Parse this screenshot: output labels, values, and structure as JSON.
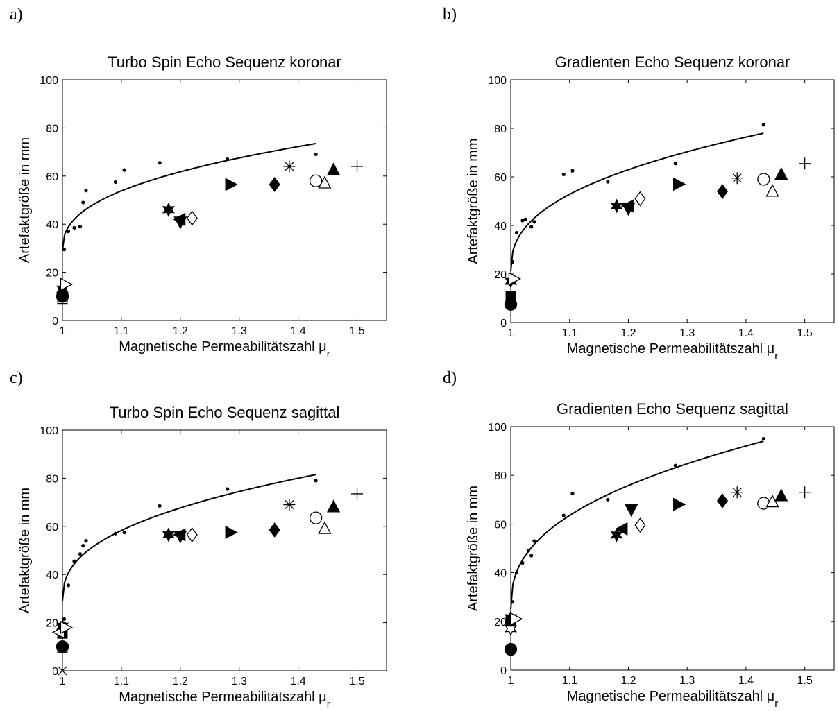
{
  "figure": {
    "panel_labels": [
      "a)",
      "b)",
      "c)",
      "d)"
    ]
  },
  "chart_data": [
    {
      "type": "scatter",
      "title": "Turbo Spin Echo Sequenz koronar",
      "xlabel": "Magnetische Permeabilitätszahl μ",
      "xlabel_sub": "r",
      "ylabel": "Artefaktgröße in mm",
      "xlim": [
        1,
        1.55
      ],
      "ylim": [
        0,
        100
      ],
      "xticks": [
        "1",
        "1.1",
        "1.2",
        "1.3",
        "1.4",
        "1.5"
      ],
      "yticks": [
        "0",
        "20",
        "40",
        "60",
        "80",
        "100"
      ],
      "grid": false,
      "fit_curve": {
        "x_min": 1.0,
        "x_max": 1.43,
        "y_start": 29,
        "y_end": 73.5,
        "exponent": 0.4
      },
      "dots": [
        [
          1.003,
          29.5
        ],
        [
          1.01,
          37
        ],
        [
          1.02,
          38.5
        ],
        [
          1.03,
          39
        ],
        [
          1.035,
          49
        ],
        [
          1.04,
          54
        ],
        [
          1.09,
          57.5
        ],
        [
          1.105,
          62.5
        ],
        [
          1.165,
          65.5
        ],
        [
          1.28,
          67
        ],
        [
          1.43,
          69
        ]
      ],
      "markers": [
        {
          "shape": "square-open",
          "x": 1.0,
          "y": 9
        },
        {
          "shape": "circle-filled",
          "x": 1.0,
          "y": 10
        },
        {
          "shape": "hexagram-filled",
          "x": 1.0,
          "y": 13
        },
        {
          "shape": "triangle-right-open",
          "x": 1.005,
          "y": 15
        },
        {
          "shape": "hexagram-filled",
          "x": 1.18,
          "y": 46
        },
        {
          "shape": "triangle-down-filled",
          "x": 1.2,
          "y": 41
        },
        {
          "shape": "triangle-left-filled",
          "x": 1.2,
          "y": 42
        },
        {
          "shape": "diamond-open",
          "x": 1.22,
          "y": 42.5
        },
        {
          "shape": "triangle-right-filled",
          "x": 1.285,
          "y": 56.5
        },
        {
          "shape": "diamond-filled",
          "x": 1.36,
          "y": 56.5
        },
        {
          "shape": "asterisk",
          "x": 1.385,
          "y": 64
        },
        {
          "shape": "circle-open",
          "x": 1.43,
          "y": 58
        },
        {
          "shape": "triangle-up-open",
          "x": 1.445,
          "y": 57
        },
        {
          "shape": "triangle-up-filled",
          "x": 1.46,
          "y": 62.5
        },
        {
          "shape": "plus",
          "x": 1.5,
          "y": 64
        }
      ]
    },
    {
      "type": "scatter",
      "title": "Gradienten Echo Sequenz koronar",
      "xlabel": "Magnetische Permeabilitätszahl μ",
      "xlabel_sub": "r",
      "ylabel": "Artefaktgröße in mm",
      "xlim": [
        1,
        1.55
      ],
      "ylim": [
        0,
        100
      ],
      "xticks": [
        "1",
        "1.1",
        "1.2",
        "1.3",
        "1.4",
        "1.5"
      ],
      "yticks": [
        "0",
        "20",
        "40",
        "60",
        "80",
        "100"
      ],
      "grid": false,
      "fit_curve": {
        "x_min": 1.0,
        "x_max": 1.43,
        "y_start": 21,
        "y_end": 78,
        "exponent": 0.4
      },
      "dots": [
        [
          1.003,
          25
        ],
        [
          1.01,
          37
        ],
        [
          1.02,
          42
        ],
        [
          1.025,
          42.5
        ],
        [
          1.035,
          39.5
        ],
        [
          1.04,
          41.5
        ],
        [
          1.09,
          61
        ],
        [
          1.105,
          62.5
        ],
        [
          1.165,
          58
        ],
        [
          1.28,
          65.5
        ],
        [
          1.43,
          81.5
        ]
      ],
      "markers": [
        {
          "shape": "circle-filled",
          "x": 1.0,
          "y": 7.5
        },
        {
          "shape": "square-filled",
          "x": 1.0,
          "y": 11
        },
        {
          "shape": "hexagram-filled",
          "x": 1.0,
          "y": 17
        },
        {
          "shape": "triangle-right-open",
          "x": 1.005,
          "y": 18
        },
        {
          "shape": "hexagram-filled",
          "x": 1.18,
          "y": 48
        },
        {
          "shape": "triangle-down-filled",
          "x": 1.2,
          "y": 47
        },
        {
          "shape": "triangle-left-filled",
          "x": 1.2,
          "y": 48
        },
        {
          "shape": "diamond-open",
          "x": 1.22,
          "y": 51
        },
        {
          "shape": "triangle-right-filled",
          "x": 1.285,
          "y": 57
        },
        {
          "shape": "diamond-filled",
          "x": 1.36,
          "y": 54
        },
        {
          "shape": "asterisk",
          "x": 1.385,
          "y": 59.5
        },
        {
          "shape": "circle-open",
          "x": 1.43,
          "y": 59
        },
        {
          "shape": "triangle-up-open",
          "x": 1.445,
          "y": 54
        },
        {
          "shape": "triangle-up-filled",
          "x": 1.46,
          "y": 61
        },
        {
          "shape": "plus",
          "x": 1.5,
          "y": 65.5
        }
      ]
    },
    {
      "type": "scatter",
      "title": "Turbo Spin Echo Sequenz sagittal",
      "xlabel": "Magnetische Permeabilitätszahl μ",
      "xlabel_sub": "r",
      "ylabel": "Artefaktgröße in mm",
      "xlim": [
        1,
        1.55
      ],
      "ylim": [
        0,
        100
      ],
      "xticks": [
        "1",
        "1.1",
        "1.2",
        "1.3",
        "1.4",
        "1.5"
      ],
      "yticks": [
        "0",
        "20",
        "40",
        "60",
        "80",
        "100"
      ],
      "grid": false,
      "fit_curve": {
        "x_min": 1.0,
        "x_max": 1.43,
        "y_start": 29,
        "y_end": 81.5,
        "exponent": 0.4
      },
      "dots": [
        [
          1.003,
          21.5
        ],
        [
          1.01,
          35.5
        ],
        [
          1.02,
          45.5
        ],
        [
          1.03,
          48.5
        ],
        [
          1.035,
          52
        ],
        [
          1.04,
          54
        ],
        [
          1.09,
          57
        ],
        [
          1.105,
          57.5
        ],
        [
          1.165,
          68.5
        ],
        [
          1.28,
          75.5
        ],
        [
          1.43,
          79
        ]
      ],
      "markers": [
        {
          "shape": "x-mark",
          "x": 1.0,
          "y": 0
        },
        {
          "shape": "square-open",
          "x": 1.0,
          "y": 9.5
        },
        {
          "shape": "circle-filled",
          "x": 1.0,
          "y": 10
        },
        {
          "shape": "square-filled",
          "x": 1.0,
          "y": 15.5
        },
        {
          "shape": "triangle-left-open",
          "x": 0.995,
          "y": 16
        },
        {
          "shape": "hexagram-filled",
          "x": 1.0,
          "y": 18.5
        },
        {
          "shape": "triangle-right-open",
          "x": 1.005,
          "y": 18
        },
        {
          "shape": "hexagram-filled",
          "x": 1.18,
          "y": 56.5
        },
        {
          "shape": "triangle-down-filled",
          "x": 1.2,
          "y": 56
        },
        {
          "shape": "triangle-left-filled",
          "x": 1.2,
          "y": 56.5
        },
        {
          "shape": "diamond-open",
          "x": 1.22,
          "y": 56.5
        },
        {
          "shape": "triangle-right-filled",
          "x": 1.285,
          "y": 57.5
        },
        {
          "shape": "diamond-filled",
          "x": 1.36,
          "y": 58.5
        },
        {
          "shape": "asterisk",
          "x": 1.385,
          "y": 69
        },
        {
          "shape": "circle-open",
          "x": 1.43,
          "y": 63.5
        },
        {
          "shape": "triangle-up-open",
          "x": 1.445,
          "y": 59
        },
        {
          "shape": "triangle-up-filled",
          "x": 1.46,
          "y": 68
        },
        {
          "shape": "plus",
          "x": 1.5,
          "y": 73.5
        }
      ]
    },
    {
      "type": "scatter",
      "title": "Gradienten Echo Sequenz sagittal",
      "xlabel": "Magnetische Permeabilitätszahl μ",
      "xlabel_sub": "r",
      "ylabel": "Artefaktgröße in mm",
      "xlim": [
        1,
        1.55
      ],
      "ylim": [
        0,
        100
      ],
      "xticks": [
        "1",
        "1.1",
        "1.2",
        "1.3",
        "1.4",
        "1.5"
      ],
      "yticks": [
        "0",
        "20",
        "40",
        "60",
        "80",
        "100"
      ],
      "grid": false,
      "fit_curve": {
        "x_min": 1.0,
        "x_max": 1.43,
        "y_start": 25,
        "y_end": 94,
        "exponent": 0.4
      },
      "dots": [
        [
          1.003,
          28
        ],
        [
          1.01,
          40
        ],
        [
          1.02,
          44
        ],
        [
          1.03,
          49
        ],
        [
          1.035,
          47
        ],
        [
          1.04,
          53
        ],
        [
          1.09,
          63.5
        ],
        [
          1.105,
          72.5
        ],
        [
          1.165,
          70
        ],
        [
          1.28,
          84
        ],
        [
          1.43,
          95
        ]
      ],
      "markers": [
        {
          "shape": "circle-filled",
          "x": 1.0,
          "y": 8.5
        },
        {
          "shape": "hexagram-open",
          "x": 1.0,
          "y": 17
        },
        {
          "shape": "square-filled",
          "x": 1.0,
          "y": 20
        },
        {
          "shape": "hexagram-filled",
          "x": 1.0,
          "y": 21.5
        },
        {
          "shape": "triangle-right-open",
          "x": 1.008,
          "y": 21
        },
        {
          "shape": "hexagram-filled",
          "x": 1.18,
          "y": 55.5
        },
        {
          "shape": "triangle-left-filled",
          "x": 1.19,
          "y": 58
        },
        {
          "shape": "triangle-down-filled",
          "x": 1.205,
          "y": 66
        },
        {
          "shape": "diamond-open",
          "x": 1.22,
          "y": 59.5
        },
        {
          "shape": "triangle-right-filled",
          "x": 1.285,
          "y": 68
        },
        {
          "shape": "diamond-filled",
          "x": 1.36,
          "y": 69.5
        },
        {
          "shape": "asterisk",
          "x": 1.385,
          "y": 73
        },
        {
          "shape": "circle-open",
          "x": 1.43,
          "y": 68.5
        },
        {
          "shape": "triangle-up-open",
          "x": 1.445,
          "y": 69
        },
        {
          "shape": "triangle-up-filled",
          "x": 1.46,
          "y": 71.5
        },
        {
          "shape": "plus",
          "x": 1.5,
          "y": 73
        }
      ]
    }
  ]
}
